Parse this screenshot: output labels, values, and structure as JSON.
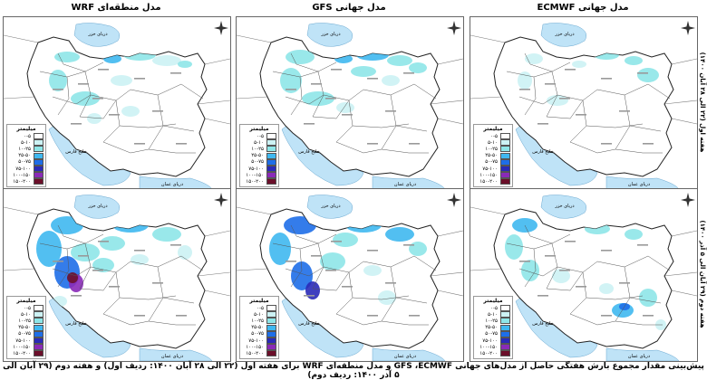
{
  "columns": [
    {
      "title": "مدل منطقه‌ای WRF"
    },
    {
      "title": "مدل جهانی GFS"
    },
    {
      "title": "مدل جهانی ECMWF"
    }
  ],
  "rows": [
    {
      "label": "هفته اول (۲۲ الی ۲۸ آبان ۱۴۰۰)"
    },
    {
      "label": "هفته دوم (۲۹ آبان الی ۵ آذر ۱۴۰۰)"
    }
  ],
  "legend": {
    "title": "میلیمتر",
    "classes": [
      {
        "label": "۰-۵",
        "color": "#ffffff"
      },
      {
        "label": "۵-۱۰",
        "color": "#ccf2f4"
      },
      {
        "label": "۱۰-۲۵",
        "color": "#8ee6e8"
      },
      {
        "label": "۲۵-۵۰",
        "color": "#3fb8f0"
      },
      {
        "label": "۵۰-۷۵",
        "color": "#1e6ee8"
      },
      {
        "label": "۷۵-۱۰۰",
        "color": "#2a2ab8"
      },
      {
        "label": "۱۰۰-۱۵۰",
        "color": "#8a2ab8"
      },
      {
        "label": "۱۵۰-۲۰۰",
        "color": "#6b0f2a"
      }
    ]
  },
  "map_labels": {
    "caspian": "دریای خزر",
    "persian_gulf": "خلیج فارس",
    "oman_sea": "دریای عمان"
  },
  "caption": "پیش‌بینی مقدار مجموع بارش هفتگی حاصل از مدل‌های جهانی GFS ،ECMWF و مدل منطقه‌ای WRF برای هفته اول (۲۲ الی ۲۸ آبان ۱۴۰۰: ردیف اول) و هفته دوم (۲۹ آبان الی ۵ آذر ۱۴۰۰: ردیف دوم)"
}
